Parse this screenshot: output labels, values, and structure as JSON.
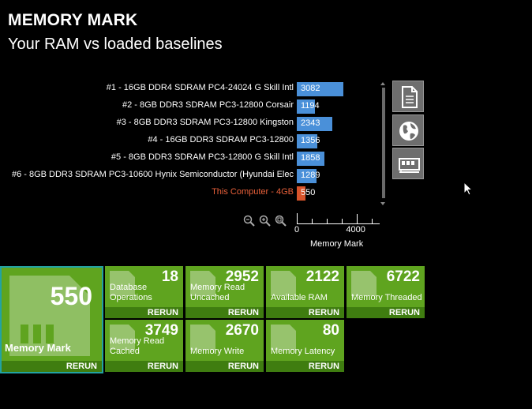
{
  "header": {
    "title": "MEMORY MARK",
    "subtitle": "Your RAM vs loaded baselines"
  },
  "chart_data": {
    "type": "bar",
    "orientation": "horizontal",
    "categories": [
      "#1 - 16GB DDR4 SDRAM PC4-24024 G Skill Intl",
      "#2 - 8GB DDR3 SDRAM PC3-12800 Corsair",
      "#3 - 8GB DDR3 SDRAM PC3-12800 Kingston",
      "#4 - 16GB DDR3 SDRAM PC3-12800",
      "#5 - 8GB DDR3 SDRAM PC3-12800 G Skill Intl",
      "#6 - 8GB DDR3 SDRAM PC3-10600 Hynix Semiconductor (Hyundai Elec",
      "This Computer - 4GB"
    ],
    "values": [
      3082,
      1194,
      2343,
      1356,
      1858,
      1289,
      550
    ],
    "highlight_index": 6,
    "xlabel": "Memory Mark",
    "xlim": [
      0,
      5500
    ],
    "xticks": [
      0,
      4000
    ],
    "colors": {
      "bar": "#4a90d9",
      "highlight": "#d9542b"
    }
  },
  "side_buttons": [
    {
      "icon": "document-icon"
    },
    {
      "icon": "globe-icon"
    },
    {
      "icon": "memory-card-icon"
    }
  ],
  "main_tile": {
    "value": "550",
    "label": "Memory Mark",
    "rerun": "RERUN"
  },
  "tiles": [
    {
      "value": "18",
      "label1": "Database",
      "label2": "Operations",
      "rerun": "RERUN"
    },
    {
      "value": "2952",
      "label1": "Memory Read",
      "label2": "Uncached",
      "rerun": "RERUN"
    },
    {
      "value": "2122",
      "label1": "Available RAM",
      "label2": "",
      "rerun": "RERUN"
    },
    {
      "value": "6722",
      "label1": "Memory Threaded",
      "label2": "",
      "rerun": "RERUN"
    },
    {
      "value": "3749",
      "label1": "Memory Read",
      "label2": "Cached",
      "rerun": "RERUN"
    },
    {
      "value": "2670",
      "label1": "Memory Write",
      "label2": "",
      "rerun": "RERUN"
    },
    {
      "value": "80",
      "label1": "Memory Latency",
      "label2": "",
      "rerun": "RERUN"
    }
  ],
  "colors": {
    "tile": "#5fa41f",
    "rerun_bar": "#3f7d10",
    "accent": "#22a3a3"
  }
}
